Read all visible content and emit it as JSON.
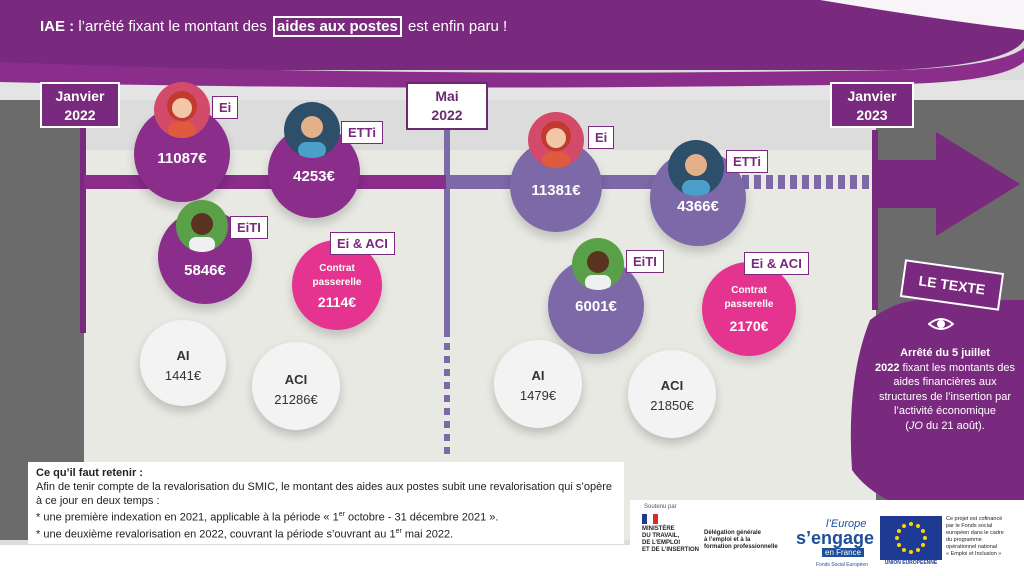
{
  "banner": {
    "prefix": "IAE :",
    "text1": " l’arrêté fixant le montant des ",
    "boxed": "aides aux postes",
    "text2": " est enfin paru !"
  },
  "dates": {
    "jan2022": [
      "Janvier",
      "2022"
    ],
    "mai2022": [
      "Mai",
      "2022"
    ],
    "jan2023": [
      "Janvier",
      "2023"
    ]
  },
  "period1": {
    "ei": {
      "tag": "Ei",
      "amount": "11087€"
    },
    "etti": {
      "tag": "ETTi",
      "amount": "4253€"
    },
    "eiti": {
      "tag": "EiTI",
      "amount": "5846€"
    },
    "eiaci": {
      "tag": "Ei & ACI",
      "label1": "Contrat",
      "label2": "passerelle",
      "amount": "2114€"
    },
    "ai": {
      "tag": "AI",
      "amount": "1441€"
    },
    "aci": {
      "tag": "ACI",
      "amount": "21286€"
    }
  },
  "period2": {
    "ei": {
      "tag": "Ei",
      "amount": "11381€"
    },
    "etti": {
      "tag": "ETTi",
      "amount": "4366€"
    },
    "eiti": {
      "tag": "EiTI",
      "amount": "6001€"
    },
    "eiaci": {
      "tag": "Ei & ACI",
      "label1": "Contrat",
      "label2": "passerelle",
      "amount": "2170€"
    },
    "ai": {
      "tag": "AI",
      "amount": "1479€"
    },
    "aci": {
      "tag": "ACI",
      "amount": "21850€"
    }
  },
  "texte": {
    "badge": "LE TEXTE",
    "line1": "Arrêté du 5 juillet",
    "line2": "2022",
    "rest": " fixant les montants des aides financières aux structures de l’insertion par l’activité économique",
    "jo_italic": "JO",
    "jo_rest": " du 21 août)."
  },
  "retain": {
    "title": "Ce qu’il faut retenir :",
    "p1": "Afin de tenir compte de la revalorisation du SMIC, le montant des aides aux postes subit une revalorisation qui s’opère à ce jour en deux temps :",
    "b1a": "* une première indexation en 2021, applicable à la période « 1",
    "b1sup": "er",
    "b1b": " octobre - 31 décembre 2021 ».",
    "b2a": "* une deuxième revalorisation en 2022, couvrant la période s’ouvrant au 1",
    "b2sup": "er",
    "b2b": " mai 2022."
  },
  "logos": {
    "soutenu": "Soutenu par",
    "ministere": [
      "MINISTÈRE",
      "DU TRAVAIL,",
      "DE L’EMPLOI",
      "ET DE L’INSERTION"
    ],
    "delegation": [
      "Délégation générale",
      "à l’emploi et à la",
      "formation professionnelle"
    ],
    "europe1": "l’Europe",
    "europe2": "s’engage",
    "europe3": "en France",
    "fse": "Fonds Social Européen",
    "ue": "UNION EUROPÉENNE",
    "cofin": [
      "Ce projet est cofinancé",
      "par le Fonds social",
      "européen dans le cadre",
      "du programme",
      "opérationnel national",
      "« Emploi et Inclusion »"
    ]
  },
  "colors": {
    "purple": "#7a2a7e",
    "light_purple": "#7d68a8",
    "pink": "#e4348f",
    "grey": "#6b6b6b"
  }
}
